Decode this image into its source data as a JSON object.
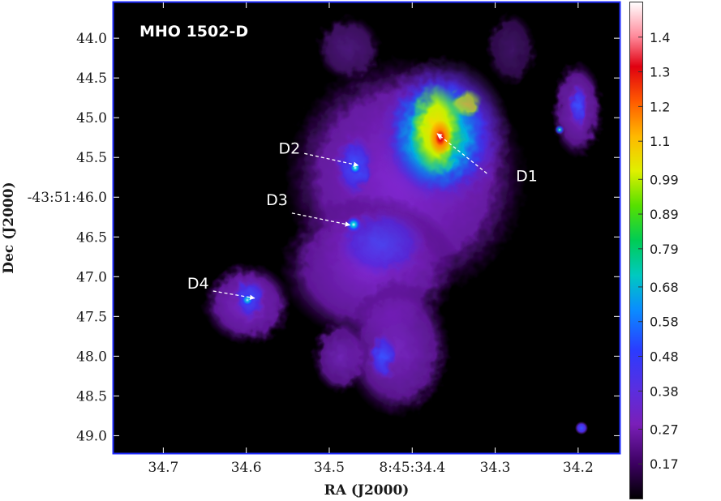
{
  "chart_data": {
    "type": "heatmap",
    "title": "MHO 1502-D",
    "xlabel": "RA (J2000)",
    "ylabel": "Dec (J2000)",
    "x_ticks": [
      {
        "value": 34.7,
        "label": "34.7"
      },
      {
        "value": 34.6,
        "label": "34.6"
      },
      {
        "value": 34.5,
        "label": "34.5"
      },
      {
        "value": 34.4,
        "label": "8:45:34.4"
      },
      {
        "value": 34.3,
        "label": "34.3"
      },
      {
        "value": 34.2,
        "label": "34.2"
      }
    ],
    "y_ticks": [
      {
        "value": 44.0,
        "label": "44.0"
      },
      {
        "value": 44.5,
        "label": "44.5"
      },
      {
        "value": 45.0,
        "label": "45.0"
      },
      {
        "value": 45.5,
        "label": "45.5"
      },
      {
        "value": 46.0,
        "label": "-43:51:46.0"
      },
      {
        "value": 46.5,
        "label": "46.5"
      },
      {
        "value": 47.0,
        "label": "47.0"
      },
      {
        "value": 47.5,
        "label": "47.5"
      },
      {
        "value": 48.0,
        "label": "48.0"
      },
      {
        "value": 48.5,
        "label": "48.5"
      },
      {
        "value": 49.0,
        "label": "49.0"
      }
    ],
    "xlim": [
      34.76,
      34.15
    ],
    "ylim": [
      43.55,
      49.22
    ],
    "colorbar": {
      "ticks": [
        "0.17",
        "0.27",
        "0.38",
        "0.48",
        "0.58",
        "0.68",
        "0.79",
        "0.89",
        "0.99",
        "1.1",
        "1.2",
        "1.3",
        "1.4"
      ],
      "tick_values": [
        0.17,
        0.27,
        0.38,
        0.48,
        0.58,
        0.68,
        0.79,
        0.89,
        0.99,
        1.1,
        1.2,
        1.3,
        1.4
      ],
      "range": [
        0.07,
        1.5
      ],
      "colormap": [
        "#000000",
        "#4b0082",
        "#8a2be2",
        "#3333ff",
        "#0099ff",
        "#00cc66",
        "#66ff00",
        "#ffff00",
        "#ff9900",
        "#ff0000",
        "#ffffff"
      ]
    },
    "annotations": [
      {
        "label": "D1",
        "text_at": [
          34.275,
          45.8
        ],
        "arrow_from": [
          34.31,
          45.7
        ],
        "arrow_to": [
          34.37,
          45.2
        ]
      },
      {
        "label": "D2",
        "text_at": [
          34.535,
          45.45
        ],
        "arrow_from": [
          34.53,
          45.45
        ],
        "arrow_to": [
          34.465,
          45.6
        ]
      },
      {
        "label": "D3",
        "text_at": [
          34.55,
          46.1
        ],
        "arrow_from": [
          34.545,
          46.2
        ],
        "arrow_to": [
          34.475,
          46.35
        ]
      },
      {
        "label": "D4",
        "text_at": [
          34.645,
          47.15
        ],
        "arrow_from": [
          34.64,
          47.18
        ],
        "arrow_to": [
          34.59,
          47.27
        ]
      }
    ],
    "emission_blobs": [
      {
        "ra": 34.385,
        "dec": 45.2,
        "level": 1.45,
        "note": "D1 peak"
      },
      {
        "ra": 34.39,
        "dec": 45.15,
        "level": 1.0
      },
      {
        "ra": 34.41,
        "dec": 45.1,
        "level": 0.6
      },
      {
        "ra": 34.465,
        "dec": 45.6,
        "level": 0.48,
        "note": "D2"
      },
      {
        "ra": 34.47,
        "dec": 46.35,
        "level": 0.45,
        "note": "D3"
      },
      {
        "ra": 34.6,
        "dec": 47.25,
        "level": 0.38,
        "note": "D4"
      },
      {
        "ra": 34.21,
        "dec": 44.9,
        "level": 0.3
      },
      {
        "ra": 34.455,
        "dec": 48.0,
        "level": 0.3
      },
      {
        "ra": 34.52,
        "dec": 48.0,
        "level": 0.25
      },
      {
        "ra": 34.2,
        "dec": 48.9,
        "level": 0.25
      }
    ]
  }
}
